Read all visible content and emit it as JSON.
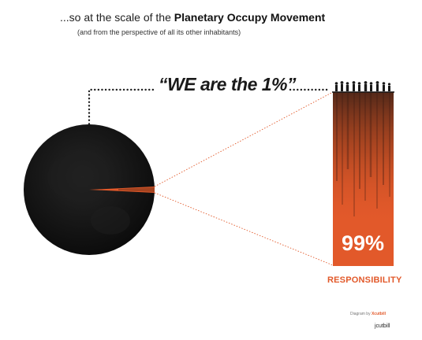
{
  "header": {
    "title_prefix": "...so at the scale of the",
    "title_emphasis": "Planetary Occupy Movement",
    "subtitle": "(and from the perspective of all its other inhabitants)"
  },
  "quote": "“WE are the 1%”",
  "bar": {
    "value_label": "99%",
    "value": 0.99,
    "caption": "RESPONSIBILITY",
    "color": "#e2592a"
  },
  "globe": {
    "slice_fraction": 0.01,
    "color": "#111111"
  },
  "credits": {
    "diagram_by": "Diagram by",
    "brand": "Xcutbill",
    "signature": "jcutbill"
  }
}
